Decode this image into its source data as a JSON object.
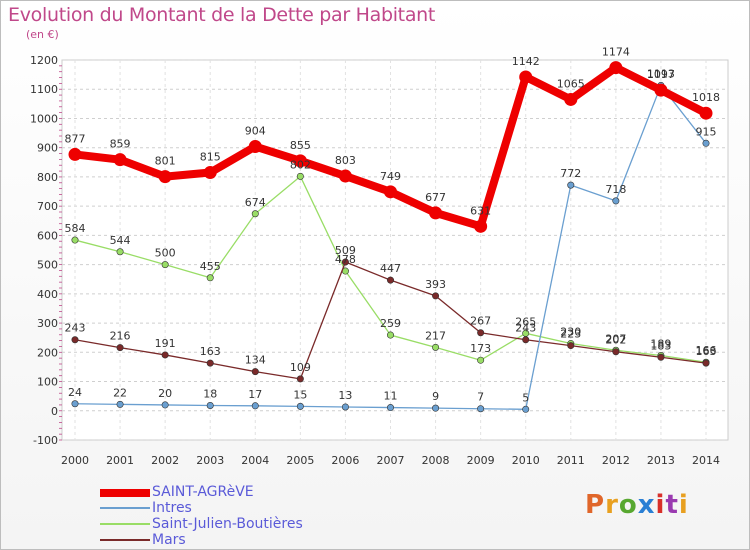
{
  "header": {
    "title": "Evolution du Montant de la Dette par Habitant",
    "subtitle": "(en €)"
  },
  "colors": {
    "saint_agreve": "#ee0000",
    "intres": "#6a9fd0",
    "saint_julien": "#99dd66",
    "mars": "#7a2a2a",
    "title": "#c0488a",
    "legend_text": "#5a5ad8"
  },
  "logo": {
    "text": "Proxiti"
  },
  "chart_data": {
    "type": "line",
    "title": "Evolution du Montant de la Dette par Habitant",
    "subtitle": "(en €)",
    "xlabel": "",
    "ylabel": "",
    "x": [
      "2000",
      "2001",
      "2002",
      "2003",
      "2004",
      "2005",
      "2006",
      "2007",
      "2008",
      "2009",
      "2010",
      "2011",
      "2012",
      "2013",
      "2014"
    ],
    "ylim": [
      -100,
      1200
    ],
    "yticks": [
      -100,
      0,
      100,
      200,
      300,
      400,
      500,
      600,
      700,
      800,
      900,
      1000,
      1100,
      1200
    ],
    "grid": true,
    "legend_position": "bottom-left",
    "series": [
      {
        "name": "SAINT-AGRèVE",
        "color": "#ee0000",
        "width": 8,
        "values": [
          877,
          859,
          801,
          815,
          904,
          855,
          803,
          749,
          677,
          631,
          1142,
          1065,
          1174,
          1097,
          1018
        ],
        "labels": [
          "877",
          "859",
          "801",
          "815",
          "904",
          "855",
          "803",
          "749",
          "677",
          "631",
          "1142",
          "1065",
          "1174",
          "1097",
          "1018"
        ]
      },
      {
        "name": "Intres",
        "color": "#6a9fd0",
        "width": 1.3,
        "values": [
          24,
          22,
          20,
          18,
          17,
          15,
          13,
          11,
          9,
          7,
          5,
          772,
          718,
          1113,
          915
        ],
        "labels": [
          "24",
          "22",
          "20",
          "18",
          "17",
          "15",
          "13",
          "11",
          "9",
          "7",
          "5",
          "772",
          "718",
          "1113",
          "915"
        ]
      },
      {
        "name": "Saint-Julien-Boutières",
        "color": "#99dd66",
        "width": 1.3,
        "values": [
          584,
          544,
          500,
          455,
          674,
          802,
          478,
          259,
          217,
          173,
          265,
          230,
          207,
          189,
          166
        ],
        "labels": [
          "584",
          "544",
          "500",
          "455",
          "674",
          "802",
          "478",
          "259",
          "217",
          "173",
          "265",
          "230",
          "207",
          "189",
          "166"
        ]
      },
      {
        "name": "Mars",
        "color": "#7a2a2a",
        "width": 1.3,
        "values": [
          243,
          216,
          191,
          163,
          134,
          109,
          509,
          447,
          393,
          267,
          243,
          223,
          202,
          183,
          163
        ],
        "labels": [
          "243",
          "216",
          "191",
          "163",
          "134",
          "109",
          "509",
          "447",
          "393",
          "267",
          "243",
          "223",
          "202",
          "183",
          "163"
        ]
      }
    ]
  }
}
